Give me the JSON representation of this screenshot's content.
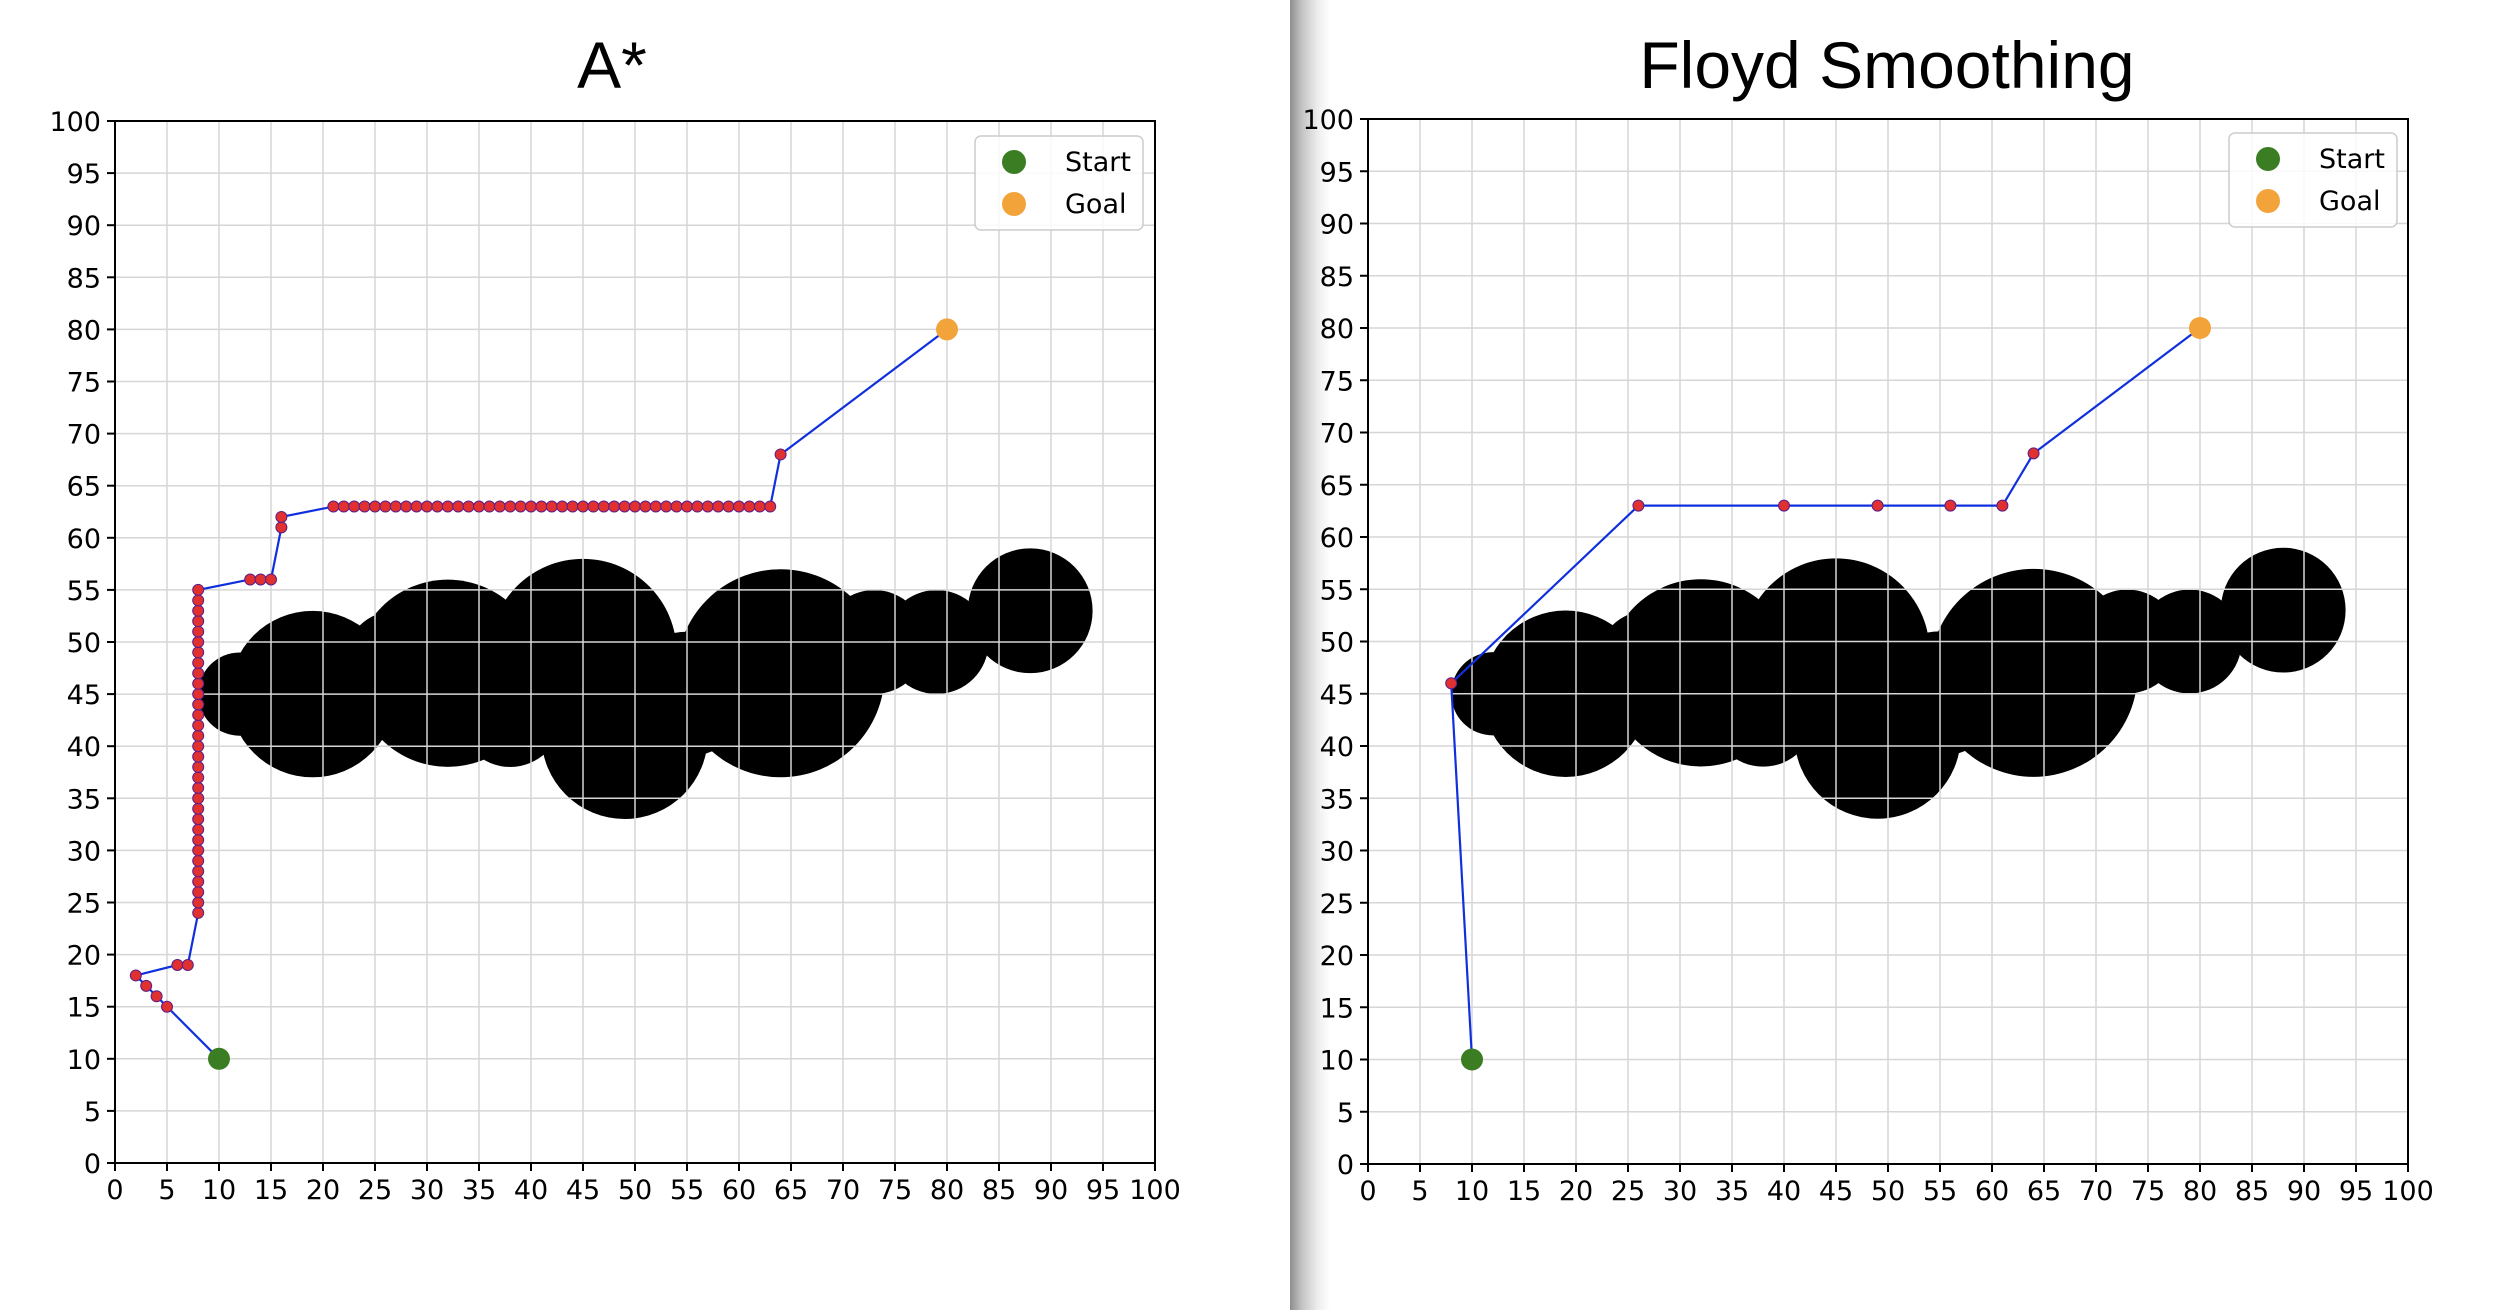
{
  "chart_data": [
    {
      "type": "scatter",
      "title": "A*",
      "xlabel": "",
      "ylabel": "",
      "xlim": [
        0,
        100
      ],
      "ylim": [
        0,
        100
      ],
      "xticks": [
        0,
        5,
        10,
        15,
        20,
        25,
        30,
        35,
        40,
        45,
        50,
        55,
        60,
        65,
        70,
        75,
        80,
        85,
        90,
        95,
        100
      ],
      "yticks": [
        0,
        5,
        10,
        15,
        20,
        25,
        30,
        35,
        40,
        45,
        50,
        55,
        60,
        65,
        70,
        75,
        80,
        85,
        90,
        95,
        100
      ],
      "grid": true,
      "legend_position": "top-right",
      "legend": [
        {
          "label": "Start",
          "color": "#3a7d22"
        },
        {
          "label": "Goal",
          "color": "#f2a33a"
        }
      ],
      "start": {
        "x": 10,
        "y": 10
      },
      "goal": {
        "x": 80,
        "y": 80
      },
      "path_color": "#1030dd",
      "waypoint_color": "#e03030",
      "obstacle_color": "#000000",
      "obstacles": [
        {
          "x": 12,
          "y": 45,
          "r": 4
        },
        {
          "x": 19,
          "y": 45,
          "r": 8
        },
        {
          "x": 27,
          "y": 48,
          "r": 5
        },
        {
          "x": 32,
          "y": 47,
          "r": 9
        },
        {
          "x": 38,
          "y": 43,
          "r": 5
        },
        {
          "x": 45,
          "y": 49,
          "r": 9
        },
        {
          "x": 49,
          "y": 41,
          "r": 8
        },
        {
          "x": 55,
          "y": 45,
          "r": 6
        },
        {
          "x": 64,
          "y": 47,
          "r": 10
        },
        {
          "x": 73,
          "y": 50,
          "r": 5
        },
        {
          "x": 79,
          "y": 50,
          "r": 5
        },
        {
          "x": 88,
          "y": 53,
          "r": 6
        }
      ],
      "path": [
        [
          10,
          10
        ],
        [
          5,
          15
        ],
        [
          4,
          16
        ],
        [
          3,
          17
        ],
        [
          2,
          18
        ],
        [
          6,
          19
        ],
        [
          7,
          19
        ],
        [
          8,
          24
        ],
        [
          8,
          25
        ],
        [
          8,
          26
        ],
        [
          8,
          27
        ],
        [
          8,
          28
        ],
        [
          8,
          29
        ],
        [
          8,
          30
        ],
        [
          8,
          31
        ],
        [
          8,
          32
        ],
        [
          8,
          33
        ],
        [
          8,
          34
        ],
        [
          8,
          35
        ],
        [
          8,
          36
        ],
        [
          8,
          37
        ],
        [
          8,
          38
        ],
        [
          8,
          39
        ],
        [
          8,
          40
        ],
        [
          8,
          41
        ],
        [
          8,
          42
        ],
        [
          8,
          43
        ],
        [
          8,
          44
        ],
        [
          8,
          45
        ],
        [
          8,
          46
        ],
        [
          8,
          47
        ],
        [
          8,
          48
        ],
        [
          8,
          49
        ],
        [
          8,
          50
        ],
        [
          8,
          51
        ],
        [
          8,
          52
        ],
        [
          8,
          53
        ],
        [
          8,
          54
        ],
        [
          8,
          55
        ],
        [
          13,
          56
        ],
        [
          14,
          56
        ],
        [
          15,
          56
        ],
        [
          16,
          61
        ],
        [
          16,
          62
        ],
        [
          21,
          63
        ],
        [
          22,
          63
        ],
        [
          23,
          63
        ],
        [
          24,
          63
        ],
        [
          25,
          63
        ],
        [
          26,
          63
        ],
        [
          27,
          63
        ],
        [
          28,
          63
        ],
        [
          29,
          63
        ],
        [
          30,
          63
        ],
        [
          31,
          63
        ],
        [
          32,
          63
        ],
        [
          33,
          63
        ],
        [
          34,
          63
        ],
        [
          35,
          63
        ],
        [
          36,
          63
        ],
        [
          37,
          63
        ],
        [
          38,
          63
        ],
        [
          39,
          63
        ],
        [
          40,
          63
        ],
        [
          41,
          63
        ],
        [
          42,
          63
        ],
        [
          43,
          63
        ],
        [
          44,
          63
        ],
        [
          45,
          63
        ],
        [
          46,
          63
        ],
        [
          47,
          63
        ],
        [
          48,
          63
        ],
        [
          49,
          63
        ],
        [
          50,
          63
        ],
        [
          51,
          63
        ],
        [
          52,
          63
        ],
        [
          53,
          63
        ],
        [
          54,
          63
        ],
        [
          55,
          63
        ],
        [
          56,
          63
        ],
        [
          57,
          63
        ],
        [
          58,
          63
        ],
        [
          59,
          63
        ],
        [
          60,
          63
        ],
        [
          61,
          63
        ],
        [
          62,
          63
        ],
        [
          63,
          63
        ],
        [
          64,
          68
        ],
        [
          80,
          80
        ]
      ]
    },
    {
      "type": "scatter",
      "title": "Floyd Smoothing",
      "xlabel": "",
      "ylabel": "",
      "xlim": [
        0,
        100
      ],
      "ylim": [
        0,
        100
      ],
      "xticks": [
        0,
        5,
        10,
        15,
        20,
        25,
        30,
        35,
        40,
        45,
        50,
        55,
        60,
        65,
        70,
        75,
        80,
        85,
        90,
        95,
        100
      ],
      "yticks": [
        0,
        5,
        10,
        15,
        20,
        25,
        30,
        35,
        40,
        45,
        50,
        55,
        60,
        65,
        70,
        75,
        80,
        85,
        90,
        95,
        100
      ],
      "grid": true,
      "legend_position": "top-right",
      "legend": [
        {
          "label": "Start",
          "color": "#3a7d22"
        },
        {
          "label": "Goal",
          "color": "#f2a33a"
        }
      ],
      "start": {
        "x": 10,
        "y": 10
      },
      "goal": {
        "x": 80,
        "y": 80
      },
      "path_color": "#1030dd",
      "waypoint_color": "#e03030",
      "obstacle_color": "#000000",
      "obstacles": [
        {
          "x": 12,
          "y": 45,
          "r": 4
        },
        {
          "x": 19,
          "y": 45,
          "r": 8
        },
        {
          "x": 27,
          "y": 48,
          "r": 5
        },
        {
          "x": 32,
          "y": 47,
          "r": 9
        },
        {
          "x": 38,
          "y": 43,
          "r": 5
        },
        {
          "x": 45,
          "y": 49,
          "r": 9
        },
        {
          "x": 49,
          "y": 41,
          "r": 8
        },
        {
          "x": 55,
          "y": 45,
          "r": 6
        },
        {
          "x": 64,
          "y": 47,
          "r": 10
        },
        {
          "x": 73,
          "y": 50,
          "r": 5
        },
        {
          "x": 79,
          "y": 50,
          "r": 5
        },
        {
          "x": 88,
          "y": 53,
          "r": 6
        }
      ],
      "path": [
        [
          10,
          10
        ],
        [
          8,
          46
        ],
        [
          26,
          63
        ],
        [
          40,
          63
        ],
        [
          49,
          63
        ],
        [
          56,
          63
        ],
        [
          61,
          63
        ],
        [
          64,
          68
        ],
        [
          80,
          80
        ]
      ]
    }
  ]
}
